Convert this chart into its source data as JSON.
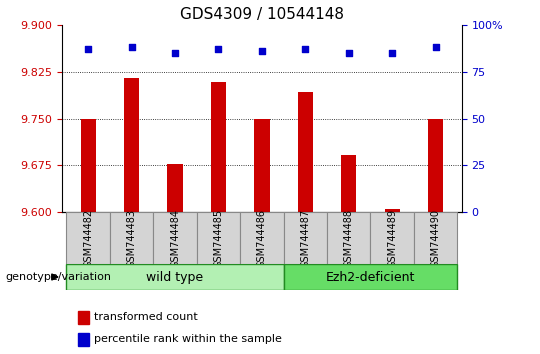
{
  "title": "GDS4309 / 10544148",
  "samples": [
    "GSM744482",
    "GSM744483",
    "GSM744484",
    "GSM744485",
    "GSM744486",
    "GSM744487",
    "GSM744488",
    "GSM744489",
    "GSM744490"
  ],
  "bar_values": [
    9.75,
    9.815,
    9.678,
    9.808,
    9.75,
    9.792,
    9.692,
    9.606,
    9.75
  ],
  "percentile_values": [
    87,
    88,
    85,
    87,
    86,
    87,
    85,
    85,
    88
  ],
  "bar_color": "#cc0000",
  "dot_color": "#0000cc",
  "ylim": [
    9.6,
    9.9
  ],
  "ylim_right": [
    0,
    100
  ],
  "yticks_left": [
    9.6,
    9.675,
    9.75,
    9.825,
    9.9
  ],
  "yticks_right": [
    0,
    25,
    50,
    75,
    100
  ],
  "ytick_labels_right": [
    "0",
    "25",
    "50",
    "75",
    "100%"
  ],
  "grid_values": [
    9.675,
    9.75,
    9.825
  ],
  "wild_type_count": 5,
  "ezh2_count": 4,
  "wild_type_label": "wild type",
  "ezh2_label": "Ezh2-deficient",
  "wild_type_color": "#b3f0b3",
  "ezh2_color": "#66dd66",
  "genotype_label": "genotype/variation",
  "legend_bar_label": "transformed count",
  "legend_dot_label": "percentile rank within the sample",
  "bar_width": 0.35,
  "tick_label_color_left": "#cc0000",
  "tick_label_color_right": "#0000cc",
  "title_fontsize": 11,
  "tick_fontsize": 8,
  "sample_fontsize": 7,
  "legend_fontsize": 8,
  "geno_fontsize": 9
}
